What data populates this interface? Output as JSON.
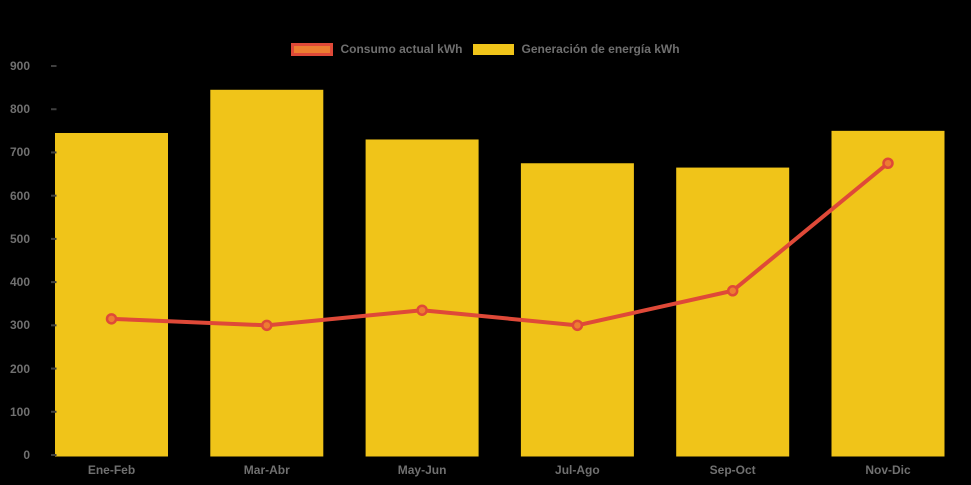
{
  "chart_data": {
    "type": "bar",
    "subtype": "bar+line combo",
    "title": "",
    "xlabel": "",
    "ylabel": "",
    "categories": [
      "Ene-Feb",
      "Mar-Abr",
      "May-Jun",
      "Jul-Ago",
      "Sep-Oct",
      "Nov-Dic"
    ],
    "series": [
      {
        "name": "Consumo actual kWh",
        "type": "line",
        "values": [
          315,
          300,
          335,
          300,
          380,
          675
        ],
        "color": "#DF4938",
        "marker_color": "#ED7D31"
      },
      {
        "name": "Generación de energía kWh",
        "type": "bar",
        "values": [
          745,
          845,
          730,
          675,
          665,
          750
        ],
        "color": "#F0C419"
      }
    ],
    "ylim": [
      0,
      900
    ],
    "y_ticks": [
      0,
      100,
      200,
      300,
      400,
      500,
      600,
      700,
      800,
      900
    ],
    "grid": false,
    "legend_position": "top-center",
    "colors": {
      "background": "#000000",
      "axis_label": "#707070",
      "legend_label": "#6F6F6F",
      "tick_mark": "#3F3F3F"
    }
  }
}
